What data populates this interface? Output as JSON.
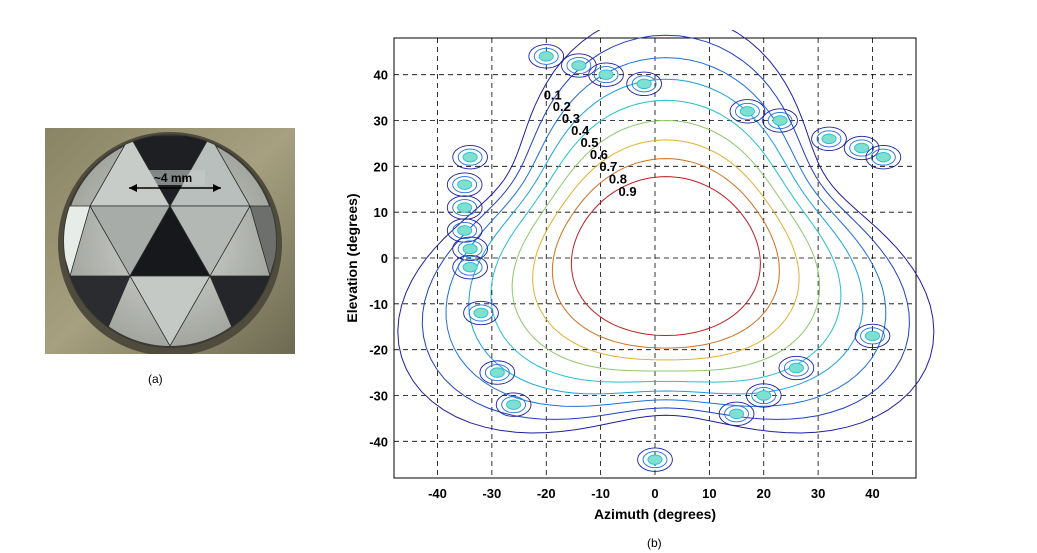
{
  "panel_a": {
    "caption": "(a)",
    "scale_label": "~4 mm"
  },
  "panel_b": {
    "caption": "(b)"
  },
  "chart_data": {
    "type": "contour",
    "xlabel": "Azimuth (degrees)",
    "ylabel": "Elevation (degrees)",
    "xlim": [
      -48,
      48
    ],
    "ylim": [
      -48,
      48
    ],
    "xticks": [
      -40,
      -30,
      -20,
      -10,
      0,
      10,
      20,
      30,
      40
    ],
    "yticks": [
      -40,
      -30,
      -20,
      -10,
      0,
      10,
      20,
      30,
      40
    ],
    "grid": "dashed",
    "levels": [
      {
        "value": 0.1,
        "label": "0.1",
        "color": "#1f1fa0"
      },
      {
        "value": 0.2,
        "label": "0.2",
        "color": "#1f3fc0"
      },
      {
        "value": 0.3,
        "label": "0.3",
        "color": "#1f70d8"
      },
      {
        "value": 0.4,
        "label": "0.4",
        "color": "#1aa0e0"
      },
      {
        "value": 0.5,
        "label": "0.5",
        "color": "#25c0d0"
      },
      {
        "value": 0.6,
        "label": "0.6",
        "color": "#8ec86a"
      },
      {
        "value": 0.7,
        "label": "0.7",
        "color": "#e0b030"
      },
      {
        "value": 0.8,
        "label": "0.8",
        "color": "#d07020"
      },
      {
        "value": 0.9,
        "label": "0.9",
        "color": "#c02020"
      }
    ],
    "contour_center": [
      2,
      0
    ],
    "spots": [
      {
        "az": -20,
        "el": 44
      },
      {
        "az": -14,
        "el": 42
      },
      {
        "az": -9,
        "el": 40
      },
      {
        "az": -2,
        "el": 38
      },
      {
        "az": 17,
        "el": 32
      },
      {
        "az": 23,
        "el": 30
      },
      {
        "az": 32,
        "el": 26
      },
      {
        "az": 38,
        "el": 24
      },
      {
        "az": 42,
        "el": 22
      },
      {
        "az": -34,
        "el": 22
      },
      {
        "az": -35,
        "el": 16
      },
      {
        "az": -35,
        "el": 11
      },
      {
        "az": -35,
        "el": 6
      },
      {
        "az": -34,
        "el": 2
      },
      {
        "az": -34,
        "el": -2
      },
      {
        "az": -32,
        "el": -12
      },
      {
        "az": -29,
        "el": -25
      },
      {
        "az": -26,
        "el": -32
      },
      {
        "az": 26,
        "el": -24
      },
      {
        "az": 40,
        "el": -17
      },
      {
        "az": 20,
        "el": -30
      },
      {
        "az": 15,
        "el": -34
      },
      {
        "az": 0,
        "el": -44
      }
    ]
  }
}
